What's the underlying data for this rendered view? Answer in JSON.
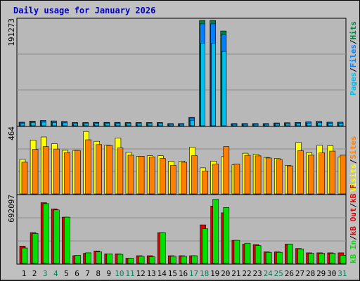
{
  "title": "Daily usage for January 2026",
  "colors": {
    "background": "#C0C0C0",
    "panel": "#b8b8b8",
    "title": "#0000c0",
    "pages": "#00c0f0",
    "files": "#0080ff",
    "hits": "#008040",
    "visits": "#ffff00",
    "sites": "#ff8000",
    "kb_in": "#00e000",
    "kb_out": "#e00000",
    "day_text": "#000000",
    "weekend_text": "#00805c"
  },
  "legend": {
    "top": [
      {
        "text": "Pages",
        "color": "#00c0f0"
      },
      {
        "text": "Files",
        "color": "#0080ff"
      },
      {
        "text": "Hits",
        "color": "#008040"
      }
    ],
    "middle": [
      {
        "text": "Visits",
        "color": "#ffff00"
      },
      {
        "text": "Sites",
        "color": "#ff8000"
      }
    ],
    "bottom": [
      {
        "text": "kB In",
        "color": "#00e000"
      },
      {
        "text": "kB Out",
        "color": "#e00000"
      },
      {
        "text": "kB F",
        "color": "#e00000"
      }
    ]
  },
  "chart_data": [
    {
      "type": "bar",
      "title": "Daily usage for January 2026",
      "categories": [
        "1",
        "2",
        "3",
        "4",
        "5",
        "6",
        "7",
        "8",
        "9",
        "10",
        "11",
        "12",
        "13",
        "14",
        "15",
        "16",
        "17",
        "18",
        "19",
        "20",
        "21",
        "22",
        "23",
        "24",
        "25",
        "26",
        "27",
        "28",
        "29",
        "30",
        "31"
      ],
      "weekend_days": [
        "3",
        "4",
        "10",
        "11",
        "17",
        "18",
        "24",
        "25",
        "31"
      ],
      "y_tick_label": "191273",
      "ylim": [
        0,
        191273
      ],
      "series": [
        {
          "name": "Hits",
          "values": [
            6500,
            8500,
            9500,
            8800,
            7800,
            5800,
            5800,
            6100,
            6100,
            6100,
            5800,
            5800,
            5800,
            5800,
            4000,
            4000,
            15000,
            191273,
            191273,
            172000,
            4000,
            4000,
            4000,
            4000,
            5000,
            5500,
            6000,
            7000,
            8000,
            6500,
            6500
          ]
        },
        {
          "name": "Files",
          "values": [
            6000,
            8000,
            9000,
            8500,
            7500,
            5500,
            5500,
            5800,
            5800,
            5800,
            5500,
            5500,
            5500,
            5500,
            3800,
            3800,
            14000,
            185000,
            185000,
            165000,
            3800,
            3800,
            3800,
            3800,
            4800,
            5200,
            5800,
            6800,
            7800,
            6200,
            6200
          ]
        },
        {
          "name": "Pages",
          "values": [
            4000,
            6000,
            6500,
            6000,
            5200,
            3800,
            3800,
            4000,
            4000,
            4000,
            3800,
            3800,
            3800,
            3800,
            2500,
            2500,
            10000,
            150000,
            150000,
            135000,
            2500,
            2500,
            2500,
            2500,
            3300,
            3600,
            4000,
            4800,
            5400,
            4300,
            4300
          ]
        }
      ]
    },
    {
      "type": "bar",
      "categories": [
        "1",
        "2",
        "3",
        "4",
        "5",
        "6",
        "7",
        "8",
        "9",
        "10",
        "11",
        "12",
        "13",
        "14",
        "15",
        "16",
        "17",
        "18",
        "19",
        "20",
        "21",
        "22",
        "23",
        "24",
        "25",
        "26",
        "27",
        "28",
        "29",
        "30",
        "31"
      ],
      "y_tick_label": "464",
      "ylim": [
        0,
        464
      ],
      "series": [
        {
          "name": "Visits",
          "values": [
            246,
            382,
            404,
            356,
            310,
            309,
            443,
            373,
            346,
            397,
            295,
            268,
            271,
            271,
            232,
            233,
            332,
            185,
            233,
            265,
            207,
            289,
            281,
            259,
            252,
            203,
            365,
            293,
            345,
            343,
            262
          ]
        },
        {
          "name": "Sites",
          "values": [
            225,
            316,
            336,
            319,
            293,
            309,
            384,
            350,
            344,
            326,
            275,
            268,
            262,
            252,
            202,
            225,
            272,
            162,
            212,
            336,
            212,
            274,
            270,
            255,
            244,
            199,
            307,
            275,
            291,
            304,
            275
          ]
        }
      ]
    },
    {
      "type": "bar",
      "categories": [
        "1",
        "2",
        "3",
        "4",
        "5",
        "6",
        "7",
        "8",
        "9",
        "10",
        "11",
        "12",
        "13",
        "14",
        "15",
        "16",
        "17",
        "18",
        "19",
        "20",
        "21",
        "22",
        "23",
        "24",
        "25",
        "26",
        "27",
        "28",
        "29",
        "30",
        "31"
      ],
      "y_tick_label": "692097",
      "ylim": [
        0,
        692097
      ],
      "series": [
        {
          "name": "kB F",
          "values": [
            180000,
            320000,
            630000,
            565000,
            480000,
            80000,
            105000,
            130000,
            100000,
            100000,
            55000,
            80000,
            80000,
            320000,
            80000,
            80000,
            80000,
            400000,
            595000,
            525000,
            240000,
            200000,
            195000,
            120000,
            120000,
            200000,
            155000,
            110000,
            110000,
            110000,
            110000
          ]
        },
        {
          "name": "kB In",
          "values": [
            160000,
            310000,
            620000,
            555000,
            480000,
            85000,
            110000,
            120000,
            100000,
            95000,
            55000,
            75000,
            70000,
            320000,
            75000,
            75000,
            80000,
            360000,
            665000,
            580000,
            240000,
            210000,
            185000,
            115000,
            115000,
            200000,
            150000,
            105000,
            105000,
            105000,
            85000
          ]
        },
        {
          "name": "kB Out",
          "values": [
            180000,
            320000,
            630000,
            565000,
            480000,
            80000,
            105000,
            130000,
            100000,
            100000,
            55000,
            80000,
            80000,
            320000,
            80000,
            80000,
            80000,
            400000,
            595000,
            525000,
            240000,
            200000,
            195000,
            120000,
            120000,
            200000,
            155000,
            110000,
            110000,
            110000,
            110000
          ]
        }
      ]
    }
  ]
}
